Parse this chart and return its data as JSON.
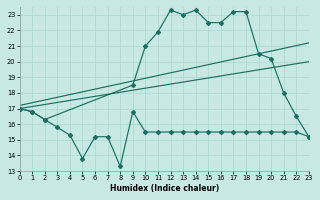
{
  "bg_color": "#c8e8e4",
  "grid_color": "#aad8d2",
  "line_color": "#1a6e62",
  "x_label": "Humidex (Indice chaleur)",
  "ylim": [
    13,
    23.5
  ],
  "xlim": [
    0,
    23
  ],
  "ytick_vals": [
    13,
    14,
    15,
    16,
    17,
    18,
    19,
    20,
    21,
    22,
    23
  ],
  "xtick_vals": [
    0,
    1,
    2,
    3,
    4,
    5,
    6,
    7,
    8,
    9,
    10,
    11,
    12,
    13,
    14,
    15,
    16,
    17,
    18,
    19,
    20,
    21,
    22,
    23
  ],
  "main_curve_x": [
    0,
    1,
    2,
    9,
    10,
    11,
    12,
    13,
    14,
    15,
    16,
    17,
    18,
    19,
    20,
    21,
    22,
    23
  ],
  "main_curve_y": [
    17.0,
    16.8,
    16.3,
    18.5,
    21.0,
    21.9,
    23.3,
    23.0,
    23.3,
    22.5,
    22.5,
    23.2,
    23.2,
    20.5,
    20.2,
    18.0,
    16.5,
    15.2
  ],
  "low_curve_x": [
    0,
    1,
    2,
    3,
    4,
    5,
    6,
    7,
    8,
    9,
    10,
    11,
    12,
    13,
    14,
    15,
    16,
    17,
    18,
    19,
    20,
    21,
    22,
    23
  ],
  "low_curve_y": [
    17.0,
    16.8,
    16.3,
    15.8,
    15.3,
    13.8,
    15.2,
    15.2,
    13.3,
    16.8,
    15.5,
    15.5,
    15.5,
    15.5,
    15.5,
    15.5,
    15.5,
    15.5,
    15.5,
    15.5,
    15.5,
    15.5,
    15.5,
    15.2
  ],
  "trend1_x": [
    0,
    23
  ],
  "trend1_y": [
    17.0,
    20.0
  ],
  "trend2_x": [
    0,
    23
  ],
  "trend2_y": [
    17.2,
    21.2
  ]
}
